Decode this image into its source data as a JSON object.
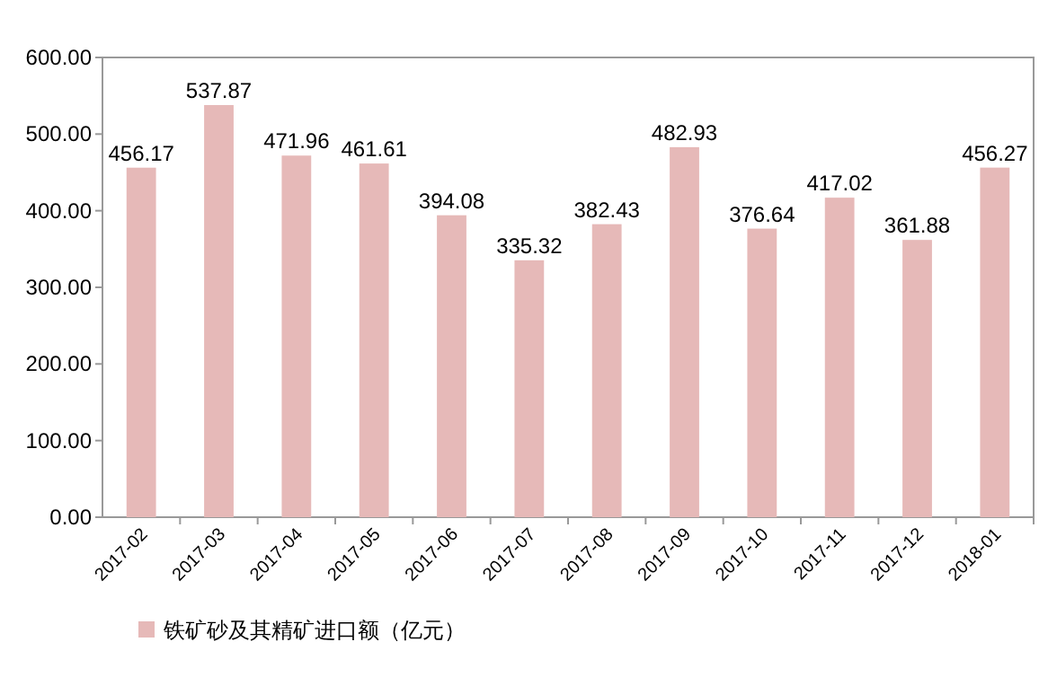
{
  "chart_data": {
    "type": "bar",
    "categories": [
      "2017-02",
      "2017-03",
      "2017-04",
      "2017-05",
      "2017-06",
      "2017-07",
      "2017-08",
      "2017-09",
      "2017-10",
      "2017-11",
      "2017-12",
      "2018-01"
    ],
    "series": [
      {
        "name": "铁矿砂及其精矿进口额（亿元）",
        "color": "#e6b9b8",
        "values": [
          456.17,
          537.87,
          471.96,
          461.61,
          394.08,
          335.32,
          382.43,
          482.93,
          376.64,
          417.02,
          361.88,
          456.27
        ]
      }
    ],
    "ylim": [
      0,
      600
    ],
    "yticks": [
      {
        "value": 0,
        "label": "0.00"
      },
      {
        "value": 100,
        "label": "100.00"
      },
      {
        "value": 200,
        "label": "200.00"
      },
      {
        "value": 300,
        "label": "300.00"
      },
      {
        "value": 400,
        "label": "400.00"
      },
      {
        "value": 500,
        "label": "500.00"
      },
      {
        "value": 600,
        "label": "600.00"
      }
    ],
    "data_labels": true,
    "legend": "bottom"
  }
}
